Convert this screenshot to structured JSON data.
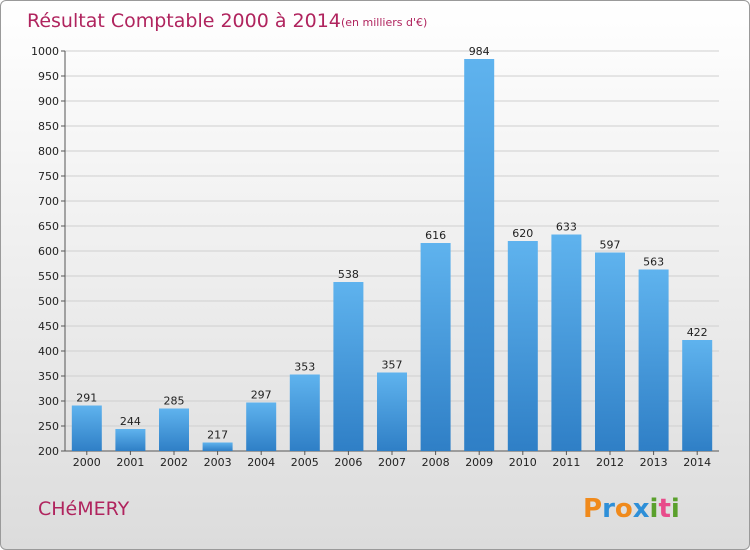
{
  "chart_data": {
    "type": "bar",
    "title": "Résultat Comptable 2000 à 2014",
    "subtitle": "(en milliers d'€)",
    "categories": [
      "2000",
      "2001",
      "2002",
      "2003",
      "2004",
      "2005",
      "2006",
      "2007",
      "2008",
      "2009",
      "2010",
      "2011",
      "2012",
      "2013",
      "2014"
    ],
    "values": [
      291,
      244,
      285,
      217,
      297,
      353,
      538,
      357,
      616,
      984,
      620,
      633,
      597,
      563,
      422
    ],
    "ylim": [
      200,
      1000
    ],
    "yticks": [
      200,
      250,
      300,
      350,
      400,
      450,
      500,
      550,
      600,
      650,
      700,
      750,
      800,
      850,
      900,
      950,
      1000
    ],
    "xlabel": "",
    "ylabel": "",
    "grid": true,
    "bar_color": "#4aa3e4"
  },
  "commune": "CHéMERY",
  "logo": {
    "letters": [
      "P",
      "r",
      "o",
      "x",
      "i",
      "t",
      "i"
    ],
    "colors": [
      "#f08a1c",
      "#2e8fd8",
      "#f08a1c",
      "#2e8fd8",
      "#5aa02c",
      "#e84b8a",
      "#5aa02c"
    ]
  }
}
